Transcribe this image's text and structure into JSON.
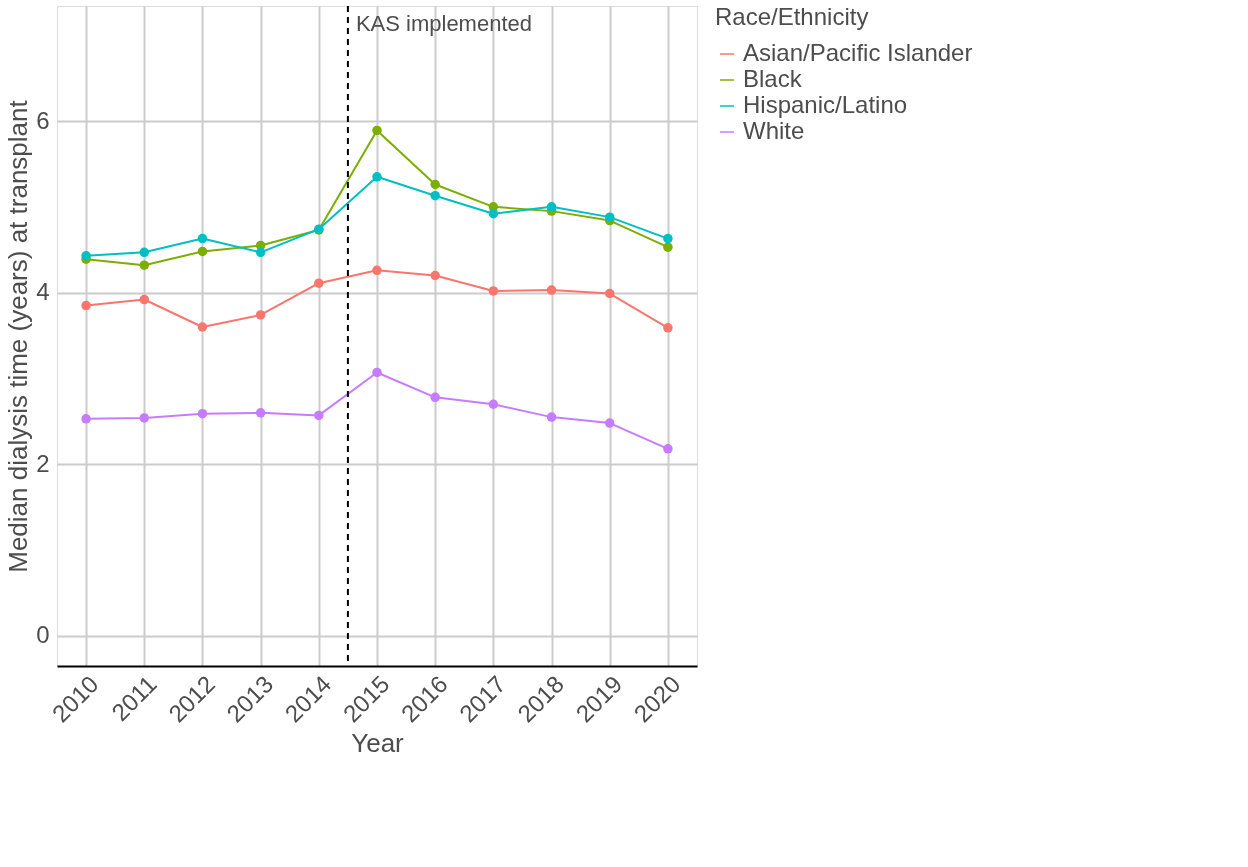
{
  "chart_data": {
    "type": "line",
    "xlabel": "Year",
    "ylabel": "Median dialysis time (years) at transplant",
    "legend_title": "Race/Ethnicity",
    "x": [
      2010,
      2011,
      2012,
      2013,
      2014,
      2015,
      2016,
      2017,
      2018,
      2019,
      2020
    ],
    "series": [
      {
        "name": "Asian/Pacific Islander",
        "color": "#f8766d",
        "values": [
          3.85,
          3.92,
          3.6,
          3.74,
          4.11,
          4.26,
          4.2,
          4.02,
          4.03,
          3.99,
          3.59
        ]
      },
      {
        "name": "Black",
        "color": "#7cae00",
        "values": [
          4.39,
          4.32,
          4.48,
          4.55,
          4.73,
          5.89,
          5.26,
          5.0,
          4.95,
          4.84,
          4.53
        ]
      },
      {
        "name": "Hispanic/Latino",
        "color": "#00bfc4",
        "values": [
          4.43,
          4.47,
          4.63,
          4.47,
          4.74,
          5.35,
          5.13,
          4.92,
          5.0,
          4.88,
          4.63
        ]
      },
      {
        "name": "White",
        "color": "#c77cff",
        "values": [
          2.53,
          2.54,
          2.59,
          2.6,
          2.57,
          3.07,
          2.78,
          2.7,
          2.55,
          2.48,
          2.18
        ]
      }
    ],
    "xlim": [
      2009.5,
      2020.5
    ],
    "xticks": [
      2010,
      2011,
      2012,
      2013,
      2014,
      2015,
      2016,
      2017,
      2018,
      2019,
      2020
    ],
    "ylim": [
      -0.35,
      7.34
    ],
    "yticks": [
      0,
      2,
      4,
      6
    ],
    "ref_lines": [
      {
        "axis": "x",
        "value": 2014.5,
        "label": "KAS implemented",
        "color": "#000000",
        "line_style": "dashed"
      }
    ],
    "grid": true,
    "legend": "right",
    "marker": "circle",
    "line_style": "solid"
  }
}
